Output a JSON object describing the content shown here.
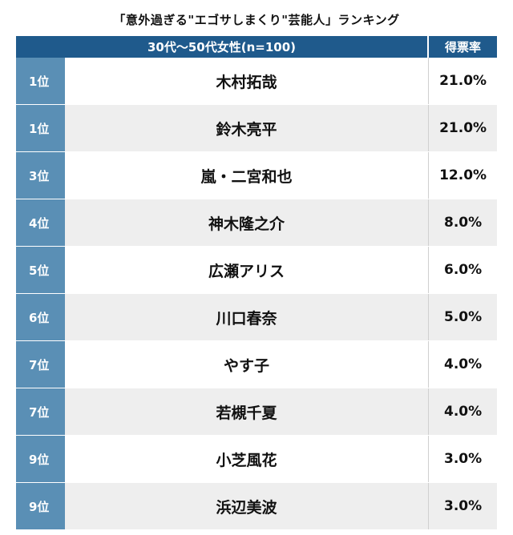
{
  "chart_data": {
    "type": "table",
    "title": "「意外過ぎる\"エゴサしまくり\"芸能人」ランキング",
    "group_header": "30代〜50代女性(n=100)",
    "value_header": "得票率",
    "rows": [
      {
        "rank": "1位",
        "name": "木村拓哉",
        "value": "21.0%"
      },
      {
        "rank": "1位",
        "name": "鈴木亮平",
        "value": "21.0%"
      },
      {
        "rank": "3位",
        "name": "嵐・二宮和也",
        "value": "12.0%"
      },
      {
        "rank": "4位",
        "name": "神木隆之介",
        "value": "8.0%"
      },
      {
        "rank": "5位",
        "name": "広瀬アリス",
        "value": "6.0%"
      },
      {
        "rank": "6位",
        "name": "川口春奈",
        "value": "5.0%"
      },
      {
        "rank": "7位",
        "name": "やす子",
        "value": "4.0%"
      },
      {
        "rank": "7位",
        "name": "若槻千夏",
        "value": "4.0%"
      },
      {
        "rank": "9位",
        "name": "小芝風花",
        "value": "3.0%"
      },
      {
        "rank": "9位",
        "name": "浜辺美波",
        "value": "3.0%"
      }
    ]
  }
}
